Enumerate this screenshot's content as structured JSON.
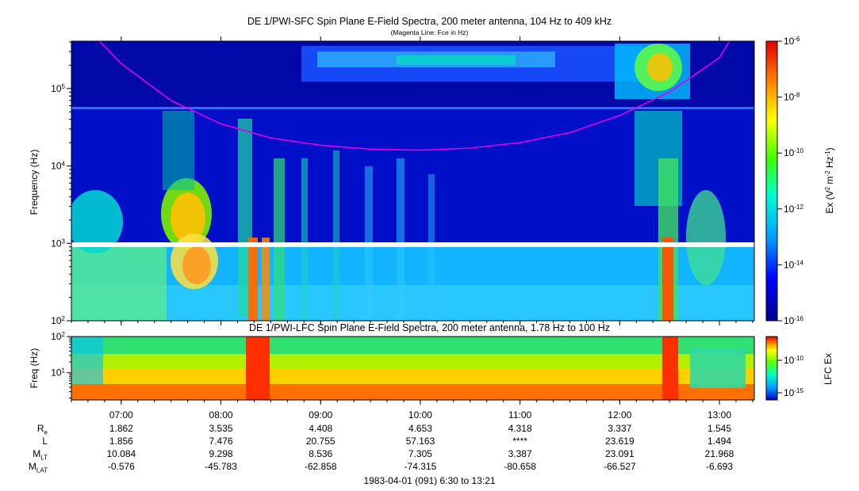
{
  "chart_data": [
    {
      "type": "heatmap",
      "title": "DE 1/PWI-SFC  Spin Plane E-Field Spectra, 200 meter antenna, 104 Hz to 409 kHz",
      "subtitle": "(Magenta Line: Fce in Hz)",
      "ylabel": "Frequency (Hz)",
      "yscale": "log",
      "ylim": [
        100,
        409000
      ],
      "yticks": [
        {
          "base": "10",
          "exp": "2"
        },
        {
          "base": "10",
          "exp": "3"
        },
        {
          "base": "10",
          "exp": "4"
        },
        {
          "base": "10",
          "exp": "5"
        }
      ],
      "xlim": [
        "06:30",
        "13:21"
      ],
      "xticks": [
        "07:00",
        "08:00",
        "09:00",
        "10:00",
        "11:00",
        "12:00",
        "13:00"
      ],
      "colorbar": {
        "label": "Ex (V2 m-2 Hz-1)",
        "scale": "log",
        "range": [
          1e-16,
          1e-06
        ],
        "ticks": [
          "10-6",
          "10-8",
          "10-10",
          "10-12",
          "10-14",
          "10-16"
        ]
      },
      "overlay_line": {
        "name": "Fce",
        "color": "#e000e0",
        "x": [
          "06:47",
          "07:00",
          "07:30",
          "08:00",
          "08:30",
          "09:00",
          "09:30",
          "10:00",
          "10:30",
          "11:00",
          "11:30",
          "12:00",
          "12:30",
          "13:00",
          "13:06"
        ],
        "y": [
          409000,
          210000,
          70000,
          35000,
          23000,
          18500,
          16500,
          16000,
          17000,
          20000,
          27000,
          45000,
          90000,
          250000,
          409000
        ]
      },
      "data_gap_y": 1000
    },
    {
      "type": "heatmap",
      "title": "DE 1/PWI-LFC  Spin Plane E-Field Spectra, 200 meter antenna, 1.78 Hz to 100 Hz",
      "ylabel": "Freq (Hz)",
      "yscale": "log",
      "ylim": [
        1.78,
        100
      ],
      "yticks": [
        {
          "base": "10",
          "exp": "1"
        },
        {
          "base": "10",
          "exp": "2"
        }
      ],
      "colorbar": {
        "label": "LFC Ex",
        "scale": "log",
        "ticks": [
          "10-10",
          "10-15"
        ]
      }
    }
  ],
  "ephemeris": {
    "times": [
      "07:00",
      "08:00",
      "09:00",
      "10:00",
      "11:00",
      "12:00",
      "13:00"
    ],
    "rows": [
      {
        "label": "R",
        "sub": "e",
        "values": [
          "1.862",
          "3.535",
          "4.408",
          "4.653",
          "4.318",
          "3.337",
          "1.545"
        ]
      },
      {
        "label": "L",
        "sub": "",
        "values": [
          "1.856",
          "7.476",
          "20.755",
          "57.163",
          "****",
          "23.619",
          "1.494"
        ]
      },
      {
        "label": "M",
        "sub": "LT",
        "values": [
          "10.084",
          "9.298",
          "8.536",
          "7.305",
          "3.387",
          "23.091",
          "21.968"
        ]
      },
      {
        "label": "M",
        "sub": "LAT",
        "values": [
          "-0.576",
          "-45.783",
          "-62.858",
          "-74.315",
          "-80.658",
          "-66.527",
          "-6.693"
        ]
      }
    ],
    "footer": "1983-04-01 (091) 6:30 to 13:21"
  }
}
